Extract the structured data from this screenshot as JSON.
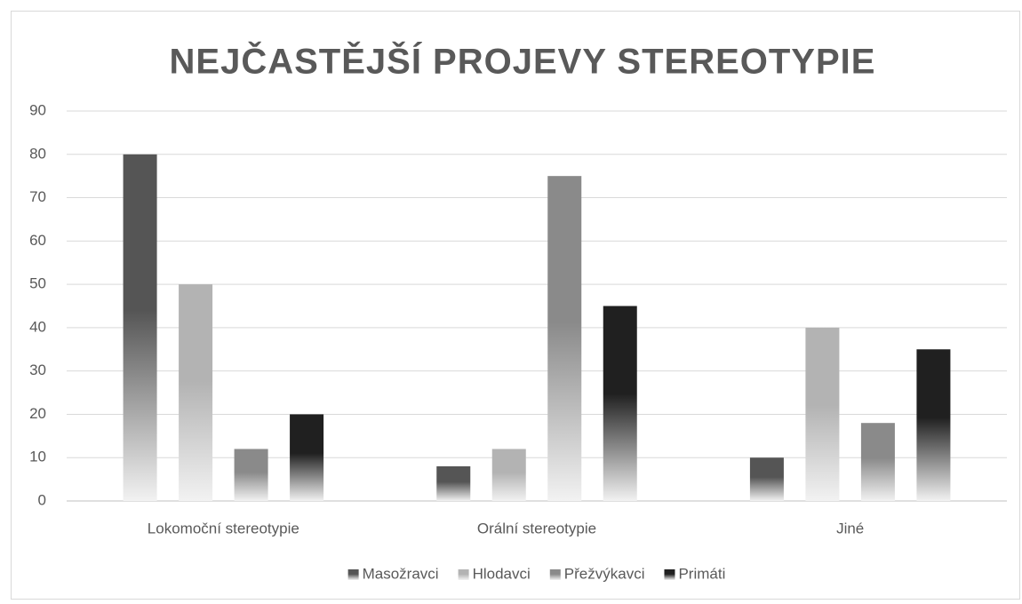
{
  "chart_data": {
    "type": "bar",
    "title": "NEJČASTĚJŠÍ PROJEVY STEREOTYPIE",
    "categories": [
      "Lokomoční stereotypie",
      "Orální stereotypie",
      "Jiné"
    ],
    "series": [
      {
        "name": "Masožravci",
        "color": "#555555",
        "values": [
          80,
          8,
          10
        ]
      },
      {
        "name": "Hlodavci",
        "color": "#b3b3b3",
        "values": [
          50,
          12,
          40
        ]
      },
      {
        "name": "Přežvýkavci",
        "color": "#8a8a8a",
        "values": [
          12,
          75,
          18
        ]
      },
      {
        "name": "Primáti",
        "color": "#202020",
        "values": [
          20,
          45,
          35
        ]
      }
    ],
    "ylim": [
      0,
      90
    ],
    "yticks": [
      0,
      10,
      20,
      30,
      40,
      50,
      60,
      70,
      80,
      90
    ],
    "grid": true,
    "legend": "bottom"
  }
}
